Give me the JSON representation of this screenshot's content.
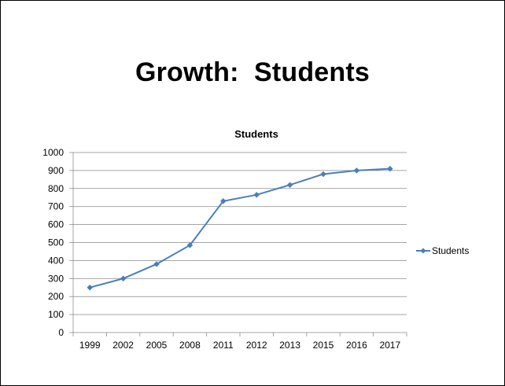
{
  "slide": {
    "title": "Growth:  Students"
  },
  "chart_data": {
    "type": "line",
    "title": "Students",
    "xlabel": "",
    "ylabel": "",
    "categories": [
      "1999",
      "2002",
      "2005",
      "2008",
      "2011",
      "2012",
      "2013",
      "2015",
      "2016",
      "2017"
    ],
    "series": [
      {
        "name": "Students",
        "values": [
          250,
          300,
          380,
          485,
          730,
          765,
          820,
          880,
          900,
          910
        ]
      }
    ],
    "ylim": [
      0,
      1000
    ],
    "yticks": [
      0,
      100,
      200,
      300,
      400,
      500,
      600,
      700,
      800,
      900,
      1000
    ],
    "grid": true,
    "legend": "right",
    "colors": {
      "series": "#4a7ebb",
      "grid": "#878787",
      "axis": "#878787",
      "text": "#000000"
    }
  }
}
